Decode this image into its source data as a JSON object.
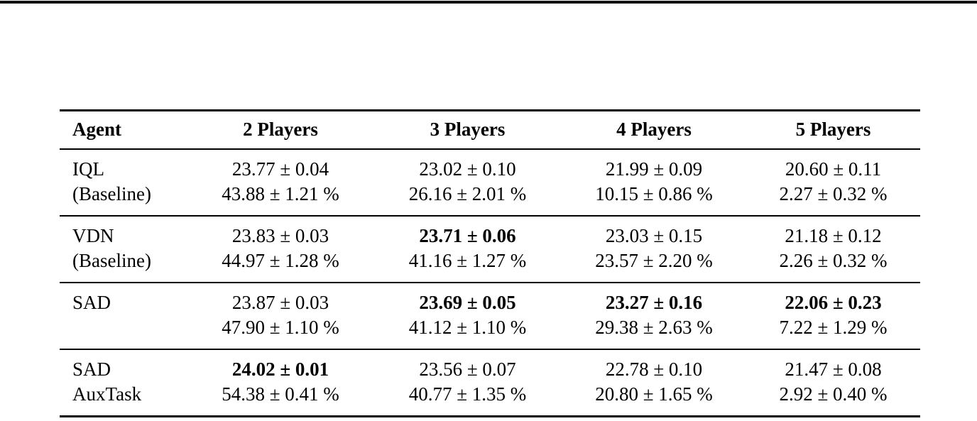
{
  "page": {
    "description_hint": "Paper results table with top page rule",
    "text_color": "#000000",
    "background_color": "#ffffff",
    "rule_color": "#000000"
  },
  "table": {
    "headers": [
      "Agent",
      "2 Players",
      "3 Players",
      "4 Players",
      "5 Players"
    ],
    "rows": [
      {
        "agent_line1": "IQL",
        "agent_line2": "(Baseline)",
        "cells": [
          {
            "score": "23.77 ± 0.04",
            "percent": "43.88 ± 1.21 %",
            "bold": false
          },
          {
            "score": "23.02 ± 0.10",
            "percent": "26.16 ± 2.01 %",
            "bold": false
          },
          {
            "score": "21.99 ± 0.09",
            "percent": "10.15 ± 0.86 %",
            "bold": false
          },
          {
            "score": "20.60 ± 0.11",
            "percent": "2.27 ± 0.32 %",
            "bold": false
          }
        ]
      },
      {
        "agent_line1": "VDN",
        "agent_line2": "(Baseline)",
        "cells": [
          {
            "score": "23.83 ± 0.03",
            "percent": "44.97 ± 1.28 %",
            "bold": false
          },
          {
            "score": "23.71 ± 0.06",
            "percent": "41.16 ± 1.27 %",
            "bold": true
          },
          {
            "score": "23.03 ± 0.15",
            "percent": "23.57 ± 2.20 %",
            "bold": false
          },
          {
            "score": "21.18 ± 0.12",
            "percent": "2.26 ± 0.32 %",
            "bold": false
          }
        ]
      },
      {
        "agent_line1": "SAD",
        "agent_line2": "",
        "cells": [
          {
            "score": "23.87 ± 0.03",
            "percent": "47.90 ± 1.10 %",
            "bold": false
          },
          {
            "score": "23.69 ± 0.05",
            "percent": "41.12 ± 1.10 %",
            "bold": true
          },
          {
            "score": "23.27 ± 0.16",
            "percent": "29.38 ± 2.63 %",
            "bold": true
          },
          {
            "score": "22.06 ± 0.23",
            "percent": "7.22 ± 1.29 %",
            "bold": true
          }
        ]
      },
      {
        "agent_line1": "SAD",
        "agent_line2": "AuxTask",
        "cells": [
          {
            "score": "24.02 ± 0.01",
            "percent": "54.38 ± 0.41 %",
            "bold": true
          },
          {
            "score": "23.56 ± 0.07",
            "percent": "40.77 ± 1.35 %",
            "bold": false
          },
          {
            "score": "22.78 ± 0.10",
            "percent": "20.80 ± 1.65 %",
            "bold": false
          },
          {
            "score": "21.47 ± 0.08",
            "percent": "2.92 ± 0.40 %",
            "bold": false
          }
        ]
      }
    ]
  }
}
